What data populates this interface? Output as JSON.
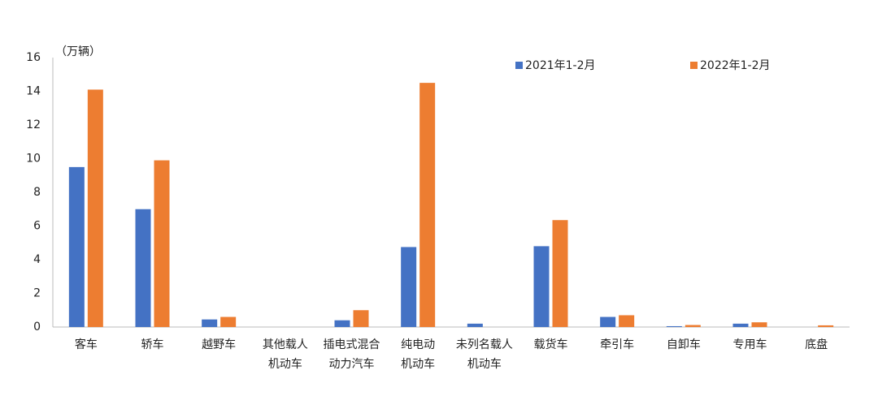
{
  "chart_data": {
    "type": "bar",
    "y_label": "（万辆）",
    "categories": [
      "客车",
      "轿车",
      "越野车",
      "其他载人\n机动车",
      "插电式混合\n动力汽车",
      "纯电动\n机动车",
      "未列名载人\n机动车",
      "载货车",
      "牵引车",
      "自卸车",
      "专用车",
      "底盘"
    ],
    "series": [
      {
        "name": "2021年1-2月",
        "color": "#4472c4",
        "values": [
          9.5,
          7.0,
          0.45,
          0,
          0.4,
          4.75,
          0.2,
          4.8,
          0.6,
          0.05,
          0.2,
          0
        ]
      },
      {
        "name": "2022年1-2月",
        "color": "#ed7d31",
        "values": [
          14.1,
          9.9,
          0.6,
          0,
          1.0,
          14.5,
          0,
          6.35,
          0.7,
          0.12,
          0.28,
          0.1
        ]
      }
    ],
    "ylim": [
      0,
      16
    ],
    "yticks": [
      0,
      2,
      4,
      6,
      8,
      10,
      12,
      14,
      16
    ],
    "grid": false
  }
}
